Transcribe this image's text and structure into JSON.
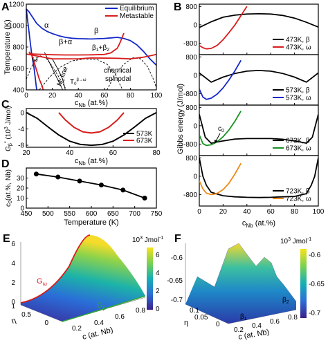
{
  "chart_data": [
    {
      "panel": "A",
      "type": "line",
      "ylabel": "Temperature (K)",
      "xlabel": "c",
      "xlabel_sub": "Nb",
      "xlabel_unit": " (at.%)",
      "xlim": [
        0,
        100
      ],
      "ylim": [
        400,
        1200
      ],
      "xticks": [
        "0",
        "20",
        "40",
        "60",
        "80",
        "100"
      ],
      "yticks": [
        "400",
        "600",
        "800",
        "1000",
        "1200"
      ],
      "legend": [
        "Equilibrium",
        "Metastable"
      ],
      "colors": {
        "equilibrium": "#1428c8",
        "metastable": "#d81b1b"
      },
      "regions": [
        "α",
        "β",
        "β+α",
        "ω",
        "β",
        "+β",
        "chemical",
        "spinodal"
      ],
      "region_subs": {
        "beta1": "1",
        "beta2": "2"
      },
      "ms_label": "M",
      "ms_sub": "s",
      "ms_line": "line",
      "t0_label": "T",
      "t0_sub": "0",
      "t0_sup": "β→ω",
      "series": [
        {
          "name": "Equilibrium",
          "x": [
            0,
            2,
            5,
            8,
            12,
            16,
            20,
            25,
            30,
            35,
            40,
            50,
            60,
            65,
            70,
            75,
            80,
            85,
            90,
            95,
            100
          ],
          "y": [
            1155,
            1130,
            1075,
            1020,
            975,
            945,
            925,
            905,
            890,
            882,
            878,
            875,
            880,
            885,
            890,
            880,
            860,
            820,
            760,
            690,
            630
          ]
        },
        {
          "name": "Equilibrium",
          "x": [
            0,
            1,
            2,
            3,
            4,
            6,
            8
          ],
          "y": [
            1155,
            1050,
            950,
            850,
            750,
            600,
            400
          ]
        },
        {
          "name": "Metastable",
          "x": [
            2,
            5,
            10,
            20,
            30,
            40,
            50,
            60,
            65,
            70,
            72,
            75
          ],
          "y": [
            735,
            735,
            732,
            728,
            726,
            726,
            727,
            730,
            745,
            790,
            840,
            930
          ]
        },
        {
          "name": "Metastable",
          "x": [
            2,
            4,
            6,
            8,
            10,
            12,
            13
          ],
          "y": [
            755,
            730,
            660,
            580,
            500,
            440,
            400
          ]
        },
        {
          "name": "Metastable",
          "x": [
            0,
            20,
            40,
            50,
            70,
            80,
            90,
            100
          ],
          "y": [
            735,
            690,
            690,
            698,
            695,
            690,
            705,
            730
          ]
        }
      ]
    },
    {
      "panel": "B",
      "type": "line",
      "ylabel": "Gibbs energy (J/mol)",
      "xlabel": "c",
      "xlabel_sub": "Nb",
      "xlabel_unit": " (at.%)",
      "xlim": [
        0,
        100
      ],
      "ylim": [
        -1300,
        900
      ],
      "xticks": [
        "0",
        "20",
        "40",
        "60",
        "80",
        "100"
      ],
      "yticks": [
        "800",
        "0",
        "-800"
      ],
      "annotation": "c",
      "annotation_sub": "0",
      "subplots": [
        {
          "temperature": "473K",
          "series": [
            {
              "name": "473K, β",
              "color": "#000000",
              "x": [
                0,
                10,
                20,
                30,
                40,
                50,
                60,
                70,
                80,
                90,
                100
              ],
              "y": [
                -120,
                130,
                330,
                420,
                470,
                480,
                470,
                410,
                290,
                110,
                -100
              ]
            },
            {
              "name": "473K, ω",
              "color": "#d81b1b",
              "x": [
                0,
                3,
                6,
                10,
                15,
                20,
                25,
                30,
                35,
                40
              ],
              "y": [
                -900,
                -1000,
                -1050,
                -1030,
                -900,
                -650,
                -340,
                0,
                400,
                800
              ]
            }
          ]
        },
        {
          "temperature": "573K",
          "series": [
            {
              "name": "573K, β",
              "color": "#000000",
              "x": [
                0,
                10,
                20,
                30,
                40,
                50,
                60,
                70,
                80,
                90,
                100
              ],
              "y": [
                100,
                -300,
                -80,
                80,
                180,
                210,
                180,
                80,
                -80,
                -300,
                100
              ]
            },
            {
              "name": "573K, ω",
              "color": "#1428c8",
              "x": [
                0,
                3,
                6,
                10,
                15,
                20,
                25,
                30,
                35
              ],
              "y": [
                -600,
                -950,
                -1050,
                -1000,
                -820,
                -550,
                -200,
                200,
                650
              ]
            }
          ]
        },
        {
          "temperature": "673K",
          "series": [
            {
              "name": "673K, β",
              "color": "#000000",
              "x": [
                0,
                5,
                10,
                20,
                30,
                40,
                50,
                60,
                70,
                80,
                90,
                95,
                100
              ],
              "y": [
                500,
                -500,
                -760,
                -660,
                -580,
                -560,
                -560,
                -560,
                -590,
                -660,
                -760,
                -500,
                500
              ]
            },
            {
              "name": "673K, ω",
              "color": "#14911e",
              "x": [
                0,
                3,
                6,
                10,
                15,
                20,
                25,
                30,
                35
              ],
              "y": [
                -400,
                -780,
                -860,
                -830,
                -700,
                -480,
                -180,
                200,
                640
              ]
            }
          ]
        },
        {
          "temperature": "723K",
          "series": [
            {
              "name": "723K, β",
              "color": "#000000",
              "x": [
                0,
                3,
                6,
                10,
                20,
                30,
                40,
                50,
                60,
                70,
                80,
                90,
                94,
                97,
                100
              ],
              "y": [
                800,
                0,
                -400,
                -700,
                -850,
                -900,
                -920,
                -930,
                -920,
                -900,
                -880,
                -760,
                -400,
                0,
                800
              ]
            },
            {
              "name": "723K, ω",
              "color": "#ee8a12",
              "x": [
                0,
                3,
                6,
                10,
                13,
                16,
                20,
                25,
                30,
                35
              ],
              "y": [
                -200,
                -550,
                -740,
                -800,
                -780,
                -720,
                -580,
                -300,
                100,
                560
              ]
            }
          ]
        }
      ]
    },
    {
      "panel": "C",
      "type": "line",
      "ylabel": "G",
      "ylabel_sub": "β",
      "ylabel_sup": "*",
      "ylabel_unit": " (10",
      "ylabel_exp": "3",
      "ylabel_end": " J/mol)",
      "xlabel": "c",
      "xlabel_sub": "Nb",
      "xlabel_unit": " (at.%)",
      "xlim": [
        20,
        80
      ],
      "ylim": [
        -8.5,
        1
      ],
      "xticks": [
        "20",
        "40",
        "60",
        "80"
      ],
      "yticks": [
        "0",
        "-4",
        "-8"
      ],
      "series": [
        {
          "name": "573K",
          "color": "#000000",
          "x": [
            20,
            25,
            30,
            35,
            40,
            45,
            50,
            55,
            60,
            65,
            70,
            75,
            80
          ],
          "y": [
            0,
            -1.4,
            -3.5,
            -5.5,
            -7.0,
            -7.8,
            -8.0,
            -7.8,
            -7.0,
            -5.5,
            -3.5,
            -1.4,
            0
          ]
        },
        {
          "name": "673K",
          "color": "#d81b1b",
          "x": [
            35,
            38,
            42,
            46,
            50,
            54,
            58,
            62,
            65
          ],
          "y": [
            0,
            -1.8,
            -3.6,
            -4.7,
            -5.0,
            -4.7,
            -3.6,
            -1.8,
            0
          ]
        }
      ]
    },
    {
      "panel": "D",
      "type": "line",
      "ylabel": "c",
      "ylabel_sub": "0",
      "ylabel_unit": "(at.%, Nb)",
      "xlabel": "Temperature (K)",
      "xlim": [
        450,
        750
      ],
      "ylim": [
        0,
        40
      ],
      "xticks": [
        "450",
        "500",
        "550",
        "600",
        "650",
        "700",
        "750"
      ],
      "yticks": [
        "0",
        "10",
        "20",
        "30"
      ],
      "series": [
        {
          "name": "c0",
          "color": "#000000",
          "x": [
            473,
            523,
            573,
            623,
            673,
            723
          ],
          "y": [
            34,
            31,
            27,
            23,
            18,
            10
          ]
        }
      ]
    },
    {
      "panel": "E",
      "type": "surface",
      "xlabel": "c (at. Nb)",
      "ylabel": "η",
      "xticks": [
        "0.2",
        "0.4",
        "0.6",
        "0.8"
      ],
      "yticks": [
        "0",
        "0.5",
        "1"
      ],
      "zticks": [
        "0",
        "2",
        "4",
        "6"
      ],
      "colorbar_title": "10",
      "colorbar_exp": "3",
      "colorbar_unit": " Jmol",
      "colorbar_unit_exp": "-1",
      "colorbar_ticks": [
        "6",
        "4",
        "2",
        "0"
      ],
      "curves": {
        "omega": "G",
        "omega_sub": "ω",
        "beta": "G",
        "beta_sub": "β"
      }
    },
    {
      "panel": "F",
      "type": "surface",
      "xlabel": "c (at. Nb)",
      "ylabel": "η",
      "xticks": [
        "0.2",
        "0.4",
        "0.6",
        "0.8"
      ],
      "yticks": [
        "0",
        "0.05",
        "0.1"
      ],
      "zticks": [
        "-0.6",
        "-0.65",
        "-0.7"
      ],
      "colorbar_title": "10",
      "colorbar_exp": "3",
      "colorbar_unit": " Jmol",
      "colorbar_unit_exp": "-1",
      "colorbar_ticks": [
        "-0.6",
        "-0.65",
        "-0.7"
      ],
      "curves": {
        "beta1": "β",
        "beta1_sub": "1",
        "beta2": "β",
        "beta2_sub": "2"
      }
    }
  ]
}
